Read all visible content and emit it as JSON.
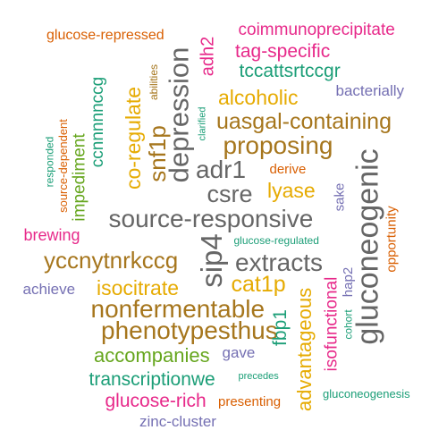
{
  "palette": {
    "green": "#1b9e77",
    "orange": "#d95f02",
    "purple": "#7570b3",
    "magenta": "#e7298a",
    "lime": "#66a61e",
    "gold": "#e6ab02",
    "brown": "#a6761d",
    "gray": "#666666"
  },
  "words": [
    {
      "text": "glucose-repressed",
      "color": "orange"
    },
    {
      "text": "coimmunoprecipitate",
      "color": "magenta"
    },
    {
      "text": "depression",
      "color": "gray"
    },
    {
      "text": "adh2",
      "color": "magenta"
    },
    {
      "text": "tag-specific",
      "color": "magenta"
    },
    {
      "text": "ccnnnnnccg",
      "color": "green"
    },
    {
      "text": "abilities",
      "color": "brown"
    },
    {
      "text": "tccattsrtccgr",
      "color": "green"
    },
    {
      "text": "bacterially",
      "color": "purple"
    },
    {
      "text": "co-regulate",
      "color": "gold"
    },
    {
      "text": "alcoholic",
      "color": "gold"
    },
    {
      "text": "clarified",
      "color": "green"
    },
    {
      "text": "responded",
      "color": "green"
    },
    {
      "text": "source-dependent",
      "color": "orange"
    },
    {
      "text": "impediment",
      "color": "lime"
    },
    {
      "text": "snf1p",
      "color": "brown"
    },
    {
      "text": "uasgal-containing",
      "color": "brown"
    },
    {
      "text": "proposing",
      "color": "brown"
    },
    {
      "text": "gluconeogenic",
      "color": "gray"
    },
    {
      "text": "adr1",
      "color": "gray"
    },
    {
      "text": "derive",
      "color": "orange"
    },
    {
      "text": "csre",
      "color": "gray"
    },
    {
      "text": "lyase",
      "color": "gold"
    },
    {
      "text": "sake",
      "color": "purple"
    },
    {
      "text": "opportunity",
      "color": "orange"
    },
    {
      "text": "source-responsive",
      "color": "gray"
    },
    {
      "text": "brewing",
      "color": "magenta"
    },
    {
      "text": "sip4",
      "color": "gray"
    },
    {
      "text": "glucose-regulated",
      "color": "green"
    },
    {
      "text": "yccnytnrkccg",
      "color": "brown"
    },
    {
      "text": "extracts",
      "color": "gray"
    },
    {
      "text": "hap2",
      "color": "purple"
    },
    {
      "text": "achieve",
      "color": "purple"
    },
    {
      "text": "isocitrate",
      "color": "gold"
    },
    {
      "text": "cat1p",
      "color": "gold"
    },
    {
      "text": "advantageous",
      "color": "gold"
    },
    {
      "text": "nonfermentable",
      "color": "brown"
    },
    {
      "text": "isofunctional",
      "color": "magenta"
    },
    {
      "text": "cohort",
      "color": "green"
    },
    {
      "text": "phenotypesthus",
      "color": "brown"
    },
    {
      "text": "fbp1",
      "color": "green"
    },
    {
      "text": "accompanies",
      "color": "lime"
    },
    {
      "text": "gave",
      "color": "purple"
    },
    {
      "text": "precedes",
      "color": "green"
    },
    {
      "text": "transcriptionwe",
      "color": "green"
    },
    {
      "text": "glucose-rich",
      "color": "magenta"
    },
    {
      "text": "presenting",
      "color": "orange"
    },
    {
      "text": "gluconeogenesis",
      "color": "green"
    },
    {
      "text": "zinc-cluster",
      "color": "purple"
    }
  ]
}
